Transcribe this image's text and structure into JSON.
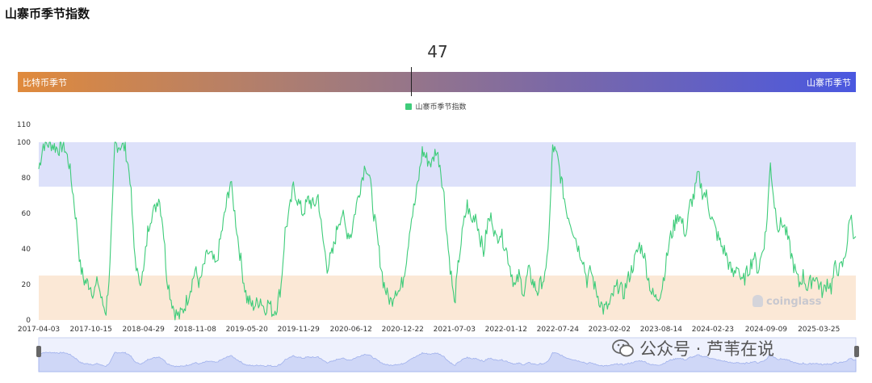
{
  "title": "山寨币季节指数",
  "gauge": {
    "value": 47,
    "value_label": "47",
    "left_label": "比特币季节",
    "right_label": "山寨币季节",
    "min": 0,
    "max": 100
  },
  "watermarks": {
    "brand": "coinglass",
    "wechat": "公众号 · 芦苇在说"
  },
  "chart_data": {
    "type": "line",
    "title": "",
    "legend_position": "top-center",
    "series": [
      {
        "name": "山寨币季节指数",
        "color": "#3ecc7a",
        "points": [
          [
            "2017-04-03",
            85
          ],
          [
            "2017-04-20",
            99
          ],
          [
            "2017-05-20",
            99
          ],
          [
            "2017-06-15",
            96
          ],
          [
            "2017-07-05",
            99
          ],
          [
            "2017-07-25",
            88
          ],
          [
            "2017-08-10",
            70
          ],
          [
            "2017-08-25",
            50
          ],
          [
            "2017-09-05",
            30
          ],
          [
            "2017-09-20",
            22
          ],
          [
            "2017-10-10",
            20
          ],
          [
            "2017-10-25",
            15
          ],
          [
            "2017-11-10",
            22
          ],
          [
            "2017-11-25",
            10
          ],
          [
            "2017-12-10",
            5
          ],
          [
            "2017-12-25",
            30
          ],
          [
            "2018-01-05",
            70
          ],
          [
            "2018-01-12",
            99
          ],
          [
            "2018-02-01",
            98
          ],
          [
            "2018-02-20",
            97
          ],
          [
            "2018-03-10",
            80
          ],
          [
            "2018-03-25",
            40
          ],
          [
            "2018-04-10",
            22
          ],
          [
            "2018-04-29",
            26
          ],
          [
            "2018-05-15",
            50
          ],
          [
            "2018-05-25",
            58
          ],
          [
            "2018-06-10",
            62
          ],
          [
            "2018-06-25",
            70
          ],
          [
            "2018-07-10",
            55
          ],
          [
            "2018-07-25",
            25
          ],
          [
            "2018-08-10",
            12
          ],
          [
            "2018-08-25",
            4
          ],
          [
            "2018-09-10",
            2
          ],
          [
            "2018-09-25",
            6
          ],
          [
            "2018-10-10",
            12
          ],
          [
            "2018-10-25",
            20
          ],
          [
            "2018-11-08",
            28
          ],
          [
            "2018-11-25",
            20
          ],
          [
            "2018-12-10",
            30
          ],
          [
            "2018-12-25",
            38
          ],
          [
            "2019-01-10",
            35
          ],
          [
            "2019-01-25",
            30
          ],
          [
            "2019-02-10",
            45
          ],
          [
            "2019-02-25",
            58
          ],
          [
            "2019-03-10",
            70
          ],
          [
            "2019-03-20",
            78
          ],
          [
            "2019-04-05",
            60
          ],
          [
            "2019-04-20",
            42
          ],
          [
            "2019-05-05",
            25
          ],
          [
            "2019-05-20",
            12
          ],
          [
            "2019-06-10",
            8
          ],
          [
            "2019-06-25",
            9
          ],
          [
            "2019-07-10",
            12
          ],
          [
            "2019-07-25",
            6
          ],
          [
            "2019-08-10",
            10
          ],
          [
            "2019-08-25",
            4
          ],
          [
            "2019-09-10",
            8
          ],
          [
            "2019-09-25",
            20
          ],
          [
            "2019-10-10",
            50
          ],
          [
            "2019-10-25",
            60
          ],
          [
            "2019-11-10",
            75
          ],
          [
            "2019-11-29",
            66
          ],
          [
            "2019-12-15",
            60
          ],
          [
            "2020-01-05",
            68
          ],
          [
            "2020-01-25",
            64
          ],
          [
            "2020-02-10",
            70
          ],
          [
            "2020-02-25",
            48
          ],
          [
            "2020-03-15",
            30
          ],
          [
            "2020-04-05",
            38
          ],
          [
            "2020-04-25",
            55
          ],
          [
            "2020-05-10",
            60
          ],
          [
            "2020-05-25",
            50
          ],
          [
            "2020-06-12",
            48
          ],
          [
            "2020-06-28",
            62
          ],
          [
            "2020-07-10",
            70
          ],
          [
            "2020-07-20",
            78
          ],
          [
            "2020-08-05",
            88
          ],
          [
            "2020-08-20",
            80
          ],
          [
            "2020-09-05",
            60
          ],
          [
            "2020-09-25",
            38
          ],
          [
            "2020-10-10",
            22
          ],
          [
            "2020-10-25",
            14
          ],
          [
            "2020-11-10",
            10
          ],
          [
            "2020-11-25",
            18
          ],
          [
            "2020-12-10",
            16
          ],
          [
            "2020-12-22",
            22
          ],
          [
            "2021-01-05",
            35
          ],
          [
            "2021-01-20",
            55
          ],
          [
            "2021-02-05",
            65
          ],
          [
            "2021-02-20",
            80
          ],
          [
            "2021-03-05",
            95
          ],
          [
            "2021-03-25",
            90
          ],
          [
            "2021-04-10",
            88
          ],
          [
            "2021-04-25",
            96
          ],
          [
            "2021-05-10",
            88
          ],
          [
            "2021-05-25",
            70
          ],
          [
            "2021-06-10",
            40
          ],
          [
            "2021-06-25",
            20
          ],
          [
            "2021-07-03",
            8
          ],
          [
            "2021-07-20",
            35
          ],
          [
            "2021-08-05",
            52
          ],
          [
            "2021-08-20",
            65
          ],
          [
            "2021-09-05",
            55
          ],
          [
            "2021-09-20",
            60
          ],
          [
            "2021-10-05",
            48
          ],
          [
            "2021-10-20",
            38
          ],
          [
            "2021-11-05",
            55
          ],
          [
            "2021-11-20",
            58
          ],
          [
            "2021-12-05",
            45
          ],
          [
            "2021-12-20",
            50
          ],
          [
            "2022-01-12",
            40
          ],
          [
            "2022-01-30",
            28
          ],
          [
            "2022-02-15",
            18
          ],
          [
            "2022-03-01",
            25
          ],
          [
            "2022-03-20",
            15
          ],
          [
            "2022-04-05",
            28
          ],
          [
            "2022-04-25",
            20
          ],
          [
            "2022-05-10",
            16
          ],
          [
            "2022-05-25",
            22
          ],
          [
            "2022-06-10",
            25
          ],
          [
            "2022-06-25",
            60
          ],
          [
            "2022-07-05",
            98
          ],
          [
            "2022-07-24",
            90
          ],
          [
            "2022-08-10",
            75
          ],
          [
            "2022-08-25",
            62
          ],
          [
            "2022-09-10",
            55
          ],
          [
            "2022-09-25",
            48
          ],
          [
            "2022-10-10",
            40
          ],
          [
            "2022-10-25",
            35
          ],
          [
            "2022-11-10",
            22
          ],
          [
            "2022-11-25",
            28
          ],
          [
            "2022-12-10",
            18
          ],
          [
            "2022-12-25",
            12
          ],
          [
            "2023-01-10",
            6
          ],
          [
            "2023-02-02",
            8
          ],
          [
            "2023-02-20",
            16
          ],
          [
            "2023-03-10",
            20
          ],
          [
            "2023-03-25",
            14
          ],
          [
            "2023-04-10",
            22
          ],
          [
            "2023-04-25",
            28
          ],
          [
            "2023-05-10",
            35
          ],
          [
            "2023-05-25",
            42
          ],
          [
            "2023-06-10",
            38
          ],
          [
            "2023-06-25",
            25
          ],
          [
            "2023-07-10",
            15
          ],
          [
            "2023-07-25",
            12
          ],
          [
            "2023-08-14",
            16
          ],
          [
            "2023-08-30",
            30
          ],
          [
            "2023-09-15",
            45
          ],
          [
            "2023-09-30",
            52
          ],
          [
            "2023-10-15",
            60
          ],
          [
            "2023-10-30",
            55
          ],
          [
            "2023-11-15",
            48
          ],
          [
            "2023-11-30",
            65
          ],
          [
            "2023-12-15",
            70
          ],
          [
            "2023-12-30",
            82
          ],
          [
            "2024-01-15",
            72
          ],
          [
            "2024-01-30",
            70
          ],
          [
            "2024-02-10",
            62
          ],
          [
            "2024-02-23",
            55
          ],
          [
            "2024-03-10",
            48
          ],
          [
            "2024-03-25",
            42
          ],
          [
            "2024-04-10",
            38
          ],
          [
            "2024-04-25",
            30
          ],
          [
            "2024-05-10",
            25
          ],
          [
            "2024-05-25",
            32
          ],
          [
            "2024-06-10",
            20
          ],
          [
            "2024-06-25",
            25
          ],
          [
            "2024-07-10",
            30
          ],
          [
            "2024-07-25",
            36
          ],
          [
            "2024-08-10",
            28
          ],
          [
            "2024-08-25",
            38
          ],
          [
            "2024-09-09",
            50
          ],
          [
            "2024-09-25",
            88
          ],
          [
            "2024-10-10",
            65
          ],
          [
            "2024-10-25",
            52
          ],
          [
            "2024-11-10",
            55
          ],
          [
            "2024-11-25",
            48
          ],
          [
            "2024-12-10",
            38
          ],
          [
            "2024-12-25",
            28
          ],
          [
            "2025-01-10",
            20
          ],
          [
            "2025-01-25",
            25
          ],
          [
            "2025-02-10",
            18
          ],
          [
            "2025-02-25",
            22
          ],
          [
            "2025-03-10",
            25
          ],
          [
            "2025-03-25",
            20
          ],
          [
            "2025-04-10",
            15
          ],
          [
            "2025-04-25",
            22
          ],
          [
            "2025-05-10",
            18
          ],
          [
            "2025-05-25",
            30
          ],
          [
            "2025-06-10",
            28
          ],
          [
            "2025-06-25",
            32
          ],
          [
            "2025-07-10",
            45
          ],
          [
            "2025-07-20",
            60
          ],
          [
            "2025-08-01",
            50
          ],
          [
            "2025-08-10",
            47
          ]
        ]
      }
    ],
    "x_ticks": [
      "2017-04-03",
      "2017-10-15",
      "2018-04-29",
      "2018-11-08",
      "2019-05-20",
      "2019-11-29",
      "2020-06-12",
      "2020-12-22",
      "2021-07-03",
      "2022-01-12",
      "2022-07-24",
      "2023-02-02",
      "2023-08-14",
      "2024-02-23",
      "2024-09-09",
      "2025-03-25"
    ],
    "y_ticks": [
      0,
      20,
      40,
      60,
      80,
      100,
      110
    ],
    "xlim": [
      "2017-04-03",
      "2025-08-10"
    ],
    "ylim": [
      0,
      110
    ],
    "bands": [
      {
        "from": 0,
        "to": 25,
        "color": "#fbe8d6"
      },
      {
        "from": 75,
        "to": 100,
        "color": "#dde1fa"
      }
    ],
    "grid": false
  }
}
